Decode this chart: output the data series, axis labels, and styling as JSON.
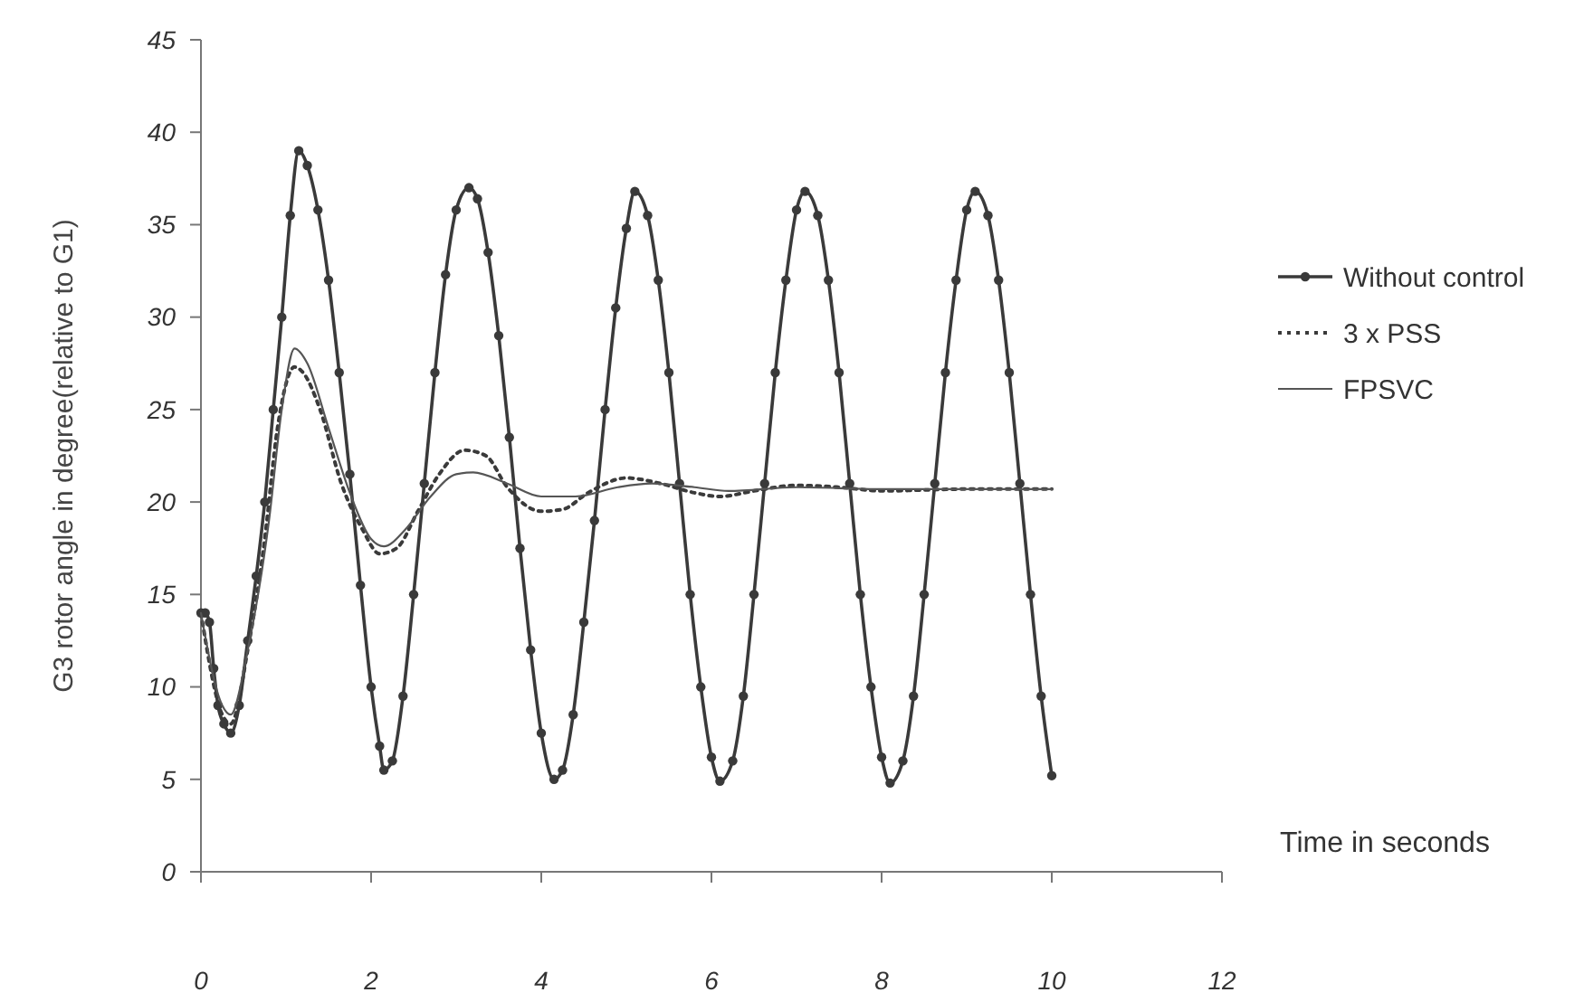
{
  "chart_data": {
    "type": "line",
    "xlabel": "Time in seconds",
    "ylabel": "G3 rotor angle in degree(relative to G1)",
    "xlim": [
      0,
      12
    ],
    "xticks": [
      0,
      2,
      4,
      6,
      8,
      10,
      12
    ],
    "ylim": [
      0,
      45
    ],
    "yticks": [
      0,
      5,
      10,
      15,
      20,
      25,
      30,
      35,
      40,
      45
    ],
    "grid": false,
    "legend": "top right",
    "series": [
      {
        "name": "Without control",
        "color": "#3a3a3a",
        "marker": "circle",
        "line_style": "solid",
        "x": [
          0,
          0.05,
          0.1,
          0.15,
          0.2,
          0.27,
          0.35,
          0.45,
          0.55,
          0.65,
          0.75,
          0.85,
          0.95,
          1.05,
          1.15,
          1.25,
          1.375,
          1.5,
          1.625,
          1.75,
          1.875,
          2,
          2.1,
          2.15,
          2.25,
          2.375,
          2.5,
          2.625,
          2.75,
          2.875,
          3,
          3.15,
          3.25,
          3.375,
          3.5,
          3.625,
          3.75,
          3.875,
          4,
          4.15,
          4.25,
          4.375,
          4.5,
          4.625,
          4.75,
          4.875,
          5,
          5.1,
          5.25,
          5.375,
          5.5,
          5.625,
          5.75,
          5.875,
          6,
          6.1,
          6.25,
          6.375,
          6.5,
          6.625,
          6.75,
          6.875,
          7,
          7.1,
          7.25,
          7.375,
          7.5,
          7.625,
          7.75,
          7.875,
          8,
          8.1,
          8.25,
          8.375,
          8.5,
          8.625,
          8.75,
          8.875,
          9,
          9.1,
          9.25,
          9.375,
          9.5,
          9.625,
          9.75,
          9.875,
          10
        ],
        "values": [
          14,
          14,
          13.5,
          11,
          9,
          8,
          7.5,
          9,
          12.5,
          16,
          20,
          25,
          30,
          35.5,
          39,
          38.2,
          35.8,
          32,
          27,
          21.5,
          15.5,
          10,
          6.8,
          5.5,
          6,
          9.5,
          15,
          21,
          27,
          32.3,
          35.8,
          37,
          36.4,
          33.5,
          29,
          23.5,
          17.5,
          12,
          7.5,
          5,
          5.5,
          8.5,
          13.5,
          19,
          25,
          30.5,
          34.8,
          36.8,
          35.5,
          32,
          27,
          21,
          15,
          10,
          6.2,
          4.9,
          6,
          9.5,
          15,
          21,
          27,
          32,
          35.8,
          36.8,
          35.5,
          32,
          27,
          21,
          15,
          10,
          6.2,
          4.8,
          6,
          9.5,
          15,
          21,
          27,
          32,
          35.8,
          36.8,
          35.5,
          32,
          27,
          21,
          15,
          9.5,
          5.2
        ]
      },
      {
        "name": "3 x PSS",
        "color": "#3a3a3a",
        "marker": "none",
        "line_style": "dotted",
        "x": [
          0,
          0.25,
          0.35,
          0.55,
          0.75,
          0.9,
          1.1,
          1.2,
          1.4,
          1.65,
          1.9,
          2.1,
          2.3,
          2.55,
          2.8,
          3.1,
          3.35,
          3.6,
          4,
          4.25,
          4.55,
          5,
          5.4,
          5.8,
          6.1,
          6.5,
          7,
          7.5,
          8,
          9,
          10
        ],
        "values": [
          14,
          8.5,
          8,
          12,
          18,
          24,
          27.3,
          27,
          25,
          21,
          18.5,
          17.2,
          17.5,
          19.5,
          21.5,
          22.8,
          22.5,
          20.8,
          19.5,
          19.6,
          20.5,
          21.3,
          21,
          20.5,
          20.3,
          20.6,
          20.9,
          20.8,
          20.6,
          20.7,
          20.7
        ]
      },
      {
        "name": "FPSVC",
        "color": "#555555",
        "marker": "none",
        "line_style": "solid",
        "x": [
          0,
          0.25,
          0.35,
          0.55,
          0.8,
          0.95,
          1.1,
          1.25,
          1.5,
          1.75,
          2,
          2.15,
          2.4,
          2.7,
          3,
          3.2,
          3.6,
          4,
          4.4,
          4.9,
          5.3,
          5.8,
          6.2,
          7,
          8,
          10
        ],
        "values": [
          14,
          9,
          8.5,
          12,
          19,
          25,
          28.3,
          27.5,
          24,
          20.5,
          18,
          17.6,
          18.5,
          20.3,
          21.5,
          21.6,
          21,
          20.3,
          20.3,
          20.8,
          21,
          20.8,
          20.6,
          20.8,
          20.7,
          20.7
        ]
      }
    ]
  }
}
